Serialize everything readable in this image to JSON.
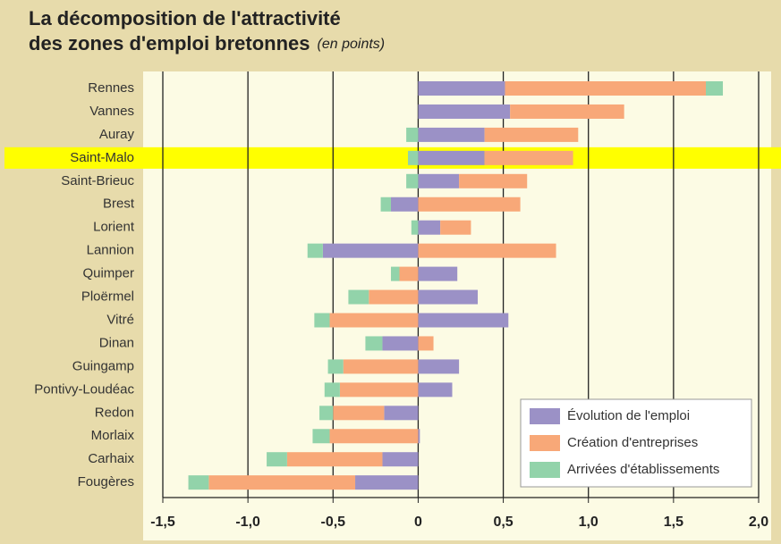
{
  "chart_data": {
    "type": "bar",
    "orientation": "horizontal",
    "stacked": true,
    "title": [
      "La décomposition de l'attractivité",
      "des zones d'emploi bretonnes"
    ],
    "subtitle": "(en points)",
    "categories": [
      "Rennes",
      "Vannes",
      "Auray",
      "Saint-Malo",
      "Saint-Brieuc",
      "Brest",
      "Lorient",
      "Lannion",
      "Quimper",
      "Ploërmel",
      "Vitré",
      "Dinan",
      "Guingamp",
      "Pontivy-Loudéac",
      "Redon",
      "Morlaix",
      "Carhaix",
      "Fougères"
    ],
    "series": [
      {
        "name": "Évolution de l'emploi",
        "color": "#9b91c6",
        "values": [
          0.51,
          0.54,
          0.39,
          0.39,
          0.24,
          -0.16,
          0.13,
          -0.56,
          0.23,
          0.35,
          0.53,
          -0.21,
          0.24,
          0.2,
          -0.2,
          0.01,
          -0.21,
          -0.37
        ]
      },
      {
        "name": "Création d'entreprises",
        "color": "#f8a878",
        "values": [
          1.18,
          0.67,
          0.55,
          0.52,
          0.4,
          0.6,
          0.18,
          0.81,
          -0.11,
          -0.29,
          -0.52,
          0.09,
          -0.44,
          -0.46,
          -0.3,
          -0.52,
          -0.56,
          -0.86
        ]
      },
      {
        "name": "Arrivées d'établissements",
        "color": "#92d3aa",
        "values": [
          0.1,
          0,
          -0.07,
          -0.06,
          -0.07,
          -0.06,
          -0.04,
          -0.09,
          -0.05,
          -0.12,
          -0.09,
          -0.1,
          -0.09,
          -0.09,
          -0.08,
          -0.1,
          -0.12,
          -0.12
        ]
      }
    ],
    "highlight": "Saint-Malo",
    "highlight_color": "#ffff00",
    "xlim": [
      -1.5,
      2.0
    ],
    "xticks": [
      {
        "value": -1.5,
        "label": "-1,5"
      },
      {
        "value": -1.0,
        "label": "-1,0"
      },
      {
        "value": -0.5,
        "label": "-0,5"
      },
      0,
      {
        "value": 0.5,
        "label": "0,5"
      },
      {
        "value": 1.0,
        "label": "1,0"
      },
      {
        "value": 1.5,
        "label": "1,5"
      },
      {
        "value": 2.0,
        "label": "2,0"
      }
    ],
    "grid": true,
    "legend": "lower right"
  }
}
